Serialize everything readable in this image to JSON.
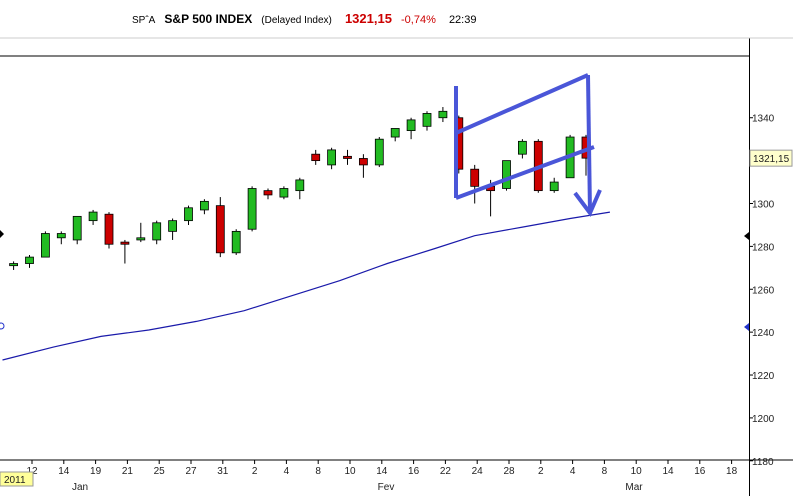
{
  "header": {
    "symbol": "SPˆA",
    "name": "S&P 500 INDEX",
    "note": "(Delayed Index)",
    "last": "1321,15",
    "change": "-0,74%",
    "time": "22:39"
  },
  "colors": {
    "up": "#22bb22",
    "down": "#cc0000",
    "ma": "#1a1aaa",
    "annotation": "#4a56d8",
    "price_tag": "#ffffcc",
    "date_tag": "#ffff99"
  },
  "chart_data": {
    "type": "candlestick",
    "title": "S&P 500 INDEX",
    "ylim": [
      1160,
      1355
    ],
    "y_ticks": [
      1180,
      1200,
      1220,
      1240,
      1260,
      1280,
      1300,
      1320,
      1340
    ],
    "y_tick_labels": [
      "1180",
      "1200",
      "1220",
      "1240",
      "1260",
      "1280",
      "1300",
      "1320",
      "1340"
    ],
    "last_price_label": "1321,15",
    "last_price": 1321.15,
    "date_tag": "2011",
    "x_ticks": [
      "12",
      "14",
      "19",
      "21",
      "25",
      "27",
      "31",
      "2",
      "4",
      "8",
      "10",
      "14",
      "16",
      "22",
      "24",
      "28",
      "2",
      "4",
      "8",
      "10",
      "14",
      "16",
      "18"
    ],
    "month_labels": [
      "Jan",
      "Fev",
      "Mar"
    ],
    "candles": [
      {
        "o": 1271,
        "h": 1273,
        "l": 1269,
        "c": 1272
      },
      {
        "o": 1272,
        "h": 1276,
        "l": 1270,
        "c": 1275
      },
      {
        "o": 1275,
        "h": 1287,
        "l": 1275,
        "c": 1286
      },
      {
        "o": 1284,
        "h": 1287,
        "l": 1281,
        "c": 1286
      },
      {
        "o": 1283,
        "h": 1294,
        "l": 1281,
        "c": 1294
      },
      {
        "o": 1292,
        "h": 1297,
        "l": 1290,
        "c": 1296
      },
      {
        "o": 1295,
        "h": 1296,
        "l": 1279,
        "c": 1281
      },
      {
        "o": 1282,
        "h": 1283,
        "l": 1272,
        "c": 1281
      },
      {
        "o": 1283,
        "h": 1291,
        "l": 1282,
        "c": 1284
      },
      {
        "o": 1283,
        "h": 1292,
        "l": 1281,
        "c": 1291
      },
      {
        "o": 1287,
        "h": 1293,
        "l": 1283,
        "c": 1292
      },
      {
        "o": 1292,
        "h": 1299,
        "l": 1290,
        "c": 1298
      },
      {
        "o": 1297,
        "h": 1302,
        "l": 1295,
        "c": 1301
      },
      {
        "o": 1299,
        "h": 1303,
        "l": 1275,
        "c": 1277
      },
      {
        "o": 1277,
        "h": 1288,
        "l": 1276,
        "c": 1287
      },
      {
        "o": 1288,
        "h": 1308,
        "l": 1287,
        "c": 1307
      },
      {
        "o": 1306,
        "h": 1307,
        "l": 1302,
        "c": 1304
      },
      {
        "o": 1303,
        "h": 1308,
        "l": 1302,
        "c": 1307
      },
      {
        "o": 1306,
        "h": 1312,
        "l": 1302,
        "c": 1311
      },
      {
        "o": 1323,
        "h": 1325,
        "l": 1318,
        "c": 1320
      },
      {
        "o": 1318,
        "h": 1326,
        "l": 1316,
        "c": 1325
      },
      {
        "o": 1322,
        "h": 1325,
        "l": 1318,
        "c": 1321
      },
      {
        "o": 1321,
        "h": 1323,
        "l": 1312,
        "c": 1318
      },
      {
        "o": 1318,
        "h": 1331,
        "l": 1317,
        "c": 1330
      },
      {
        "o": 1331,
        "h": 1335,
        "l": 1329,
        "c": 1335
      },
      {
        "o": 1334,
        "h": 1340,
        "l": 1330,
        "c": 1339
      },
      {
        "o": 1336,
        "h": 1343,
        "l": 1334,
        "c": 1342
      },
      {
        "o": 1340,
        "h": 1345,
        "l": 1338,
        "c": 1343
      },
      {
        "o": 1340,
        "h": 1341,
        "l": 1314,
        "c": 1316
      },
      {
        "o": 1316,
        "h": 1318,
        "l": 1300,
        "c": 1308
      },
      {
        "o": 1308,
        "h": 1311,
        "l": 1294,
        "c": 1306
      },
      {
        "o": 1307,
        "h": 1320,
        "l": 1306,
        "c": 1320
      },
      {
        "o": 1323,
        "h": 1330,
        "l": 1321,
        "c": 1329
      },
      {
        "o": 1329,
        "h": 1330,
        "l": 1305,
        "c": 1306
      },
      {
        "o": 1306,
        "h": 1312,
        "l": 1305,
        "c": 1310
      },
      {
        "o": 1312,
        "h": 1332,
        "l": 1312,
        "c": 1331
      },
      {
        "o": 1331,
        "h": 1332,
        "l": 1313,
        "c": 1321.15
      }
    ],
    "moving_average": [
      {
        "i": -0.7,
        "v": 1227
      },
      {
        "i": 2.5,
        "v": 1233
      },
      {
        "i": 5.5,
        "v": 1238
      },
      {
        "i": 8.5,
        "v": 1241
      },
      {
        "i": 11.5,
        "v": 1245
      },
      {
        "i": 14.5,
        "v": 1250
      },
      {
        "i": 17.5,
        "v": 1257
      },
      {
        "i": 20.5,
        "v": 1264
      },
      {
        "i": 23.5,
        "v": 1272
      },
      {
        "i": 26.5,
        "v": 1279
      },
      {
        "i": 29,
        "v": 1285
      },
      {
        "i": 32,
        "v": 1289
      },
      {
        "i": 35,
        "v": 1293
      },
      {
        "i": 37.5,
        "v": 1296
      }
    ]
  }
}
